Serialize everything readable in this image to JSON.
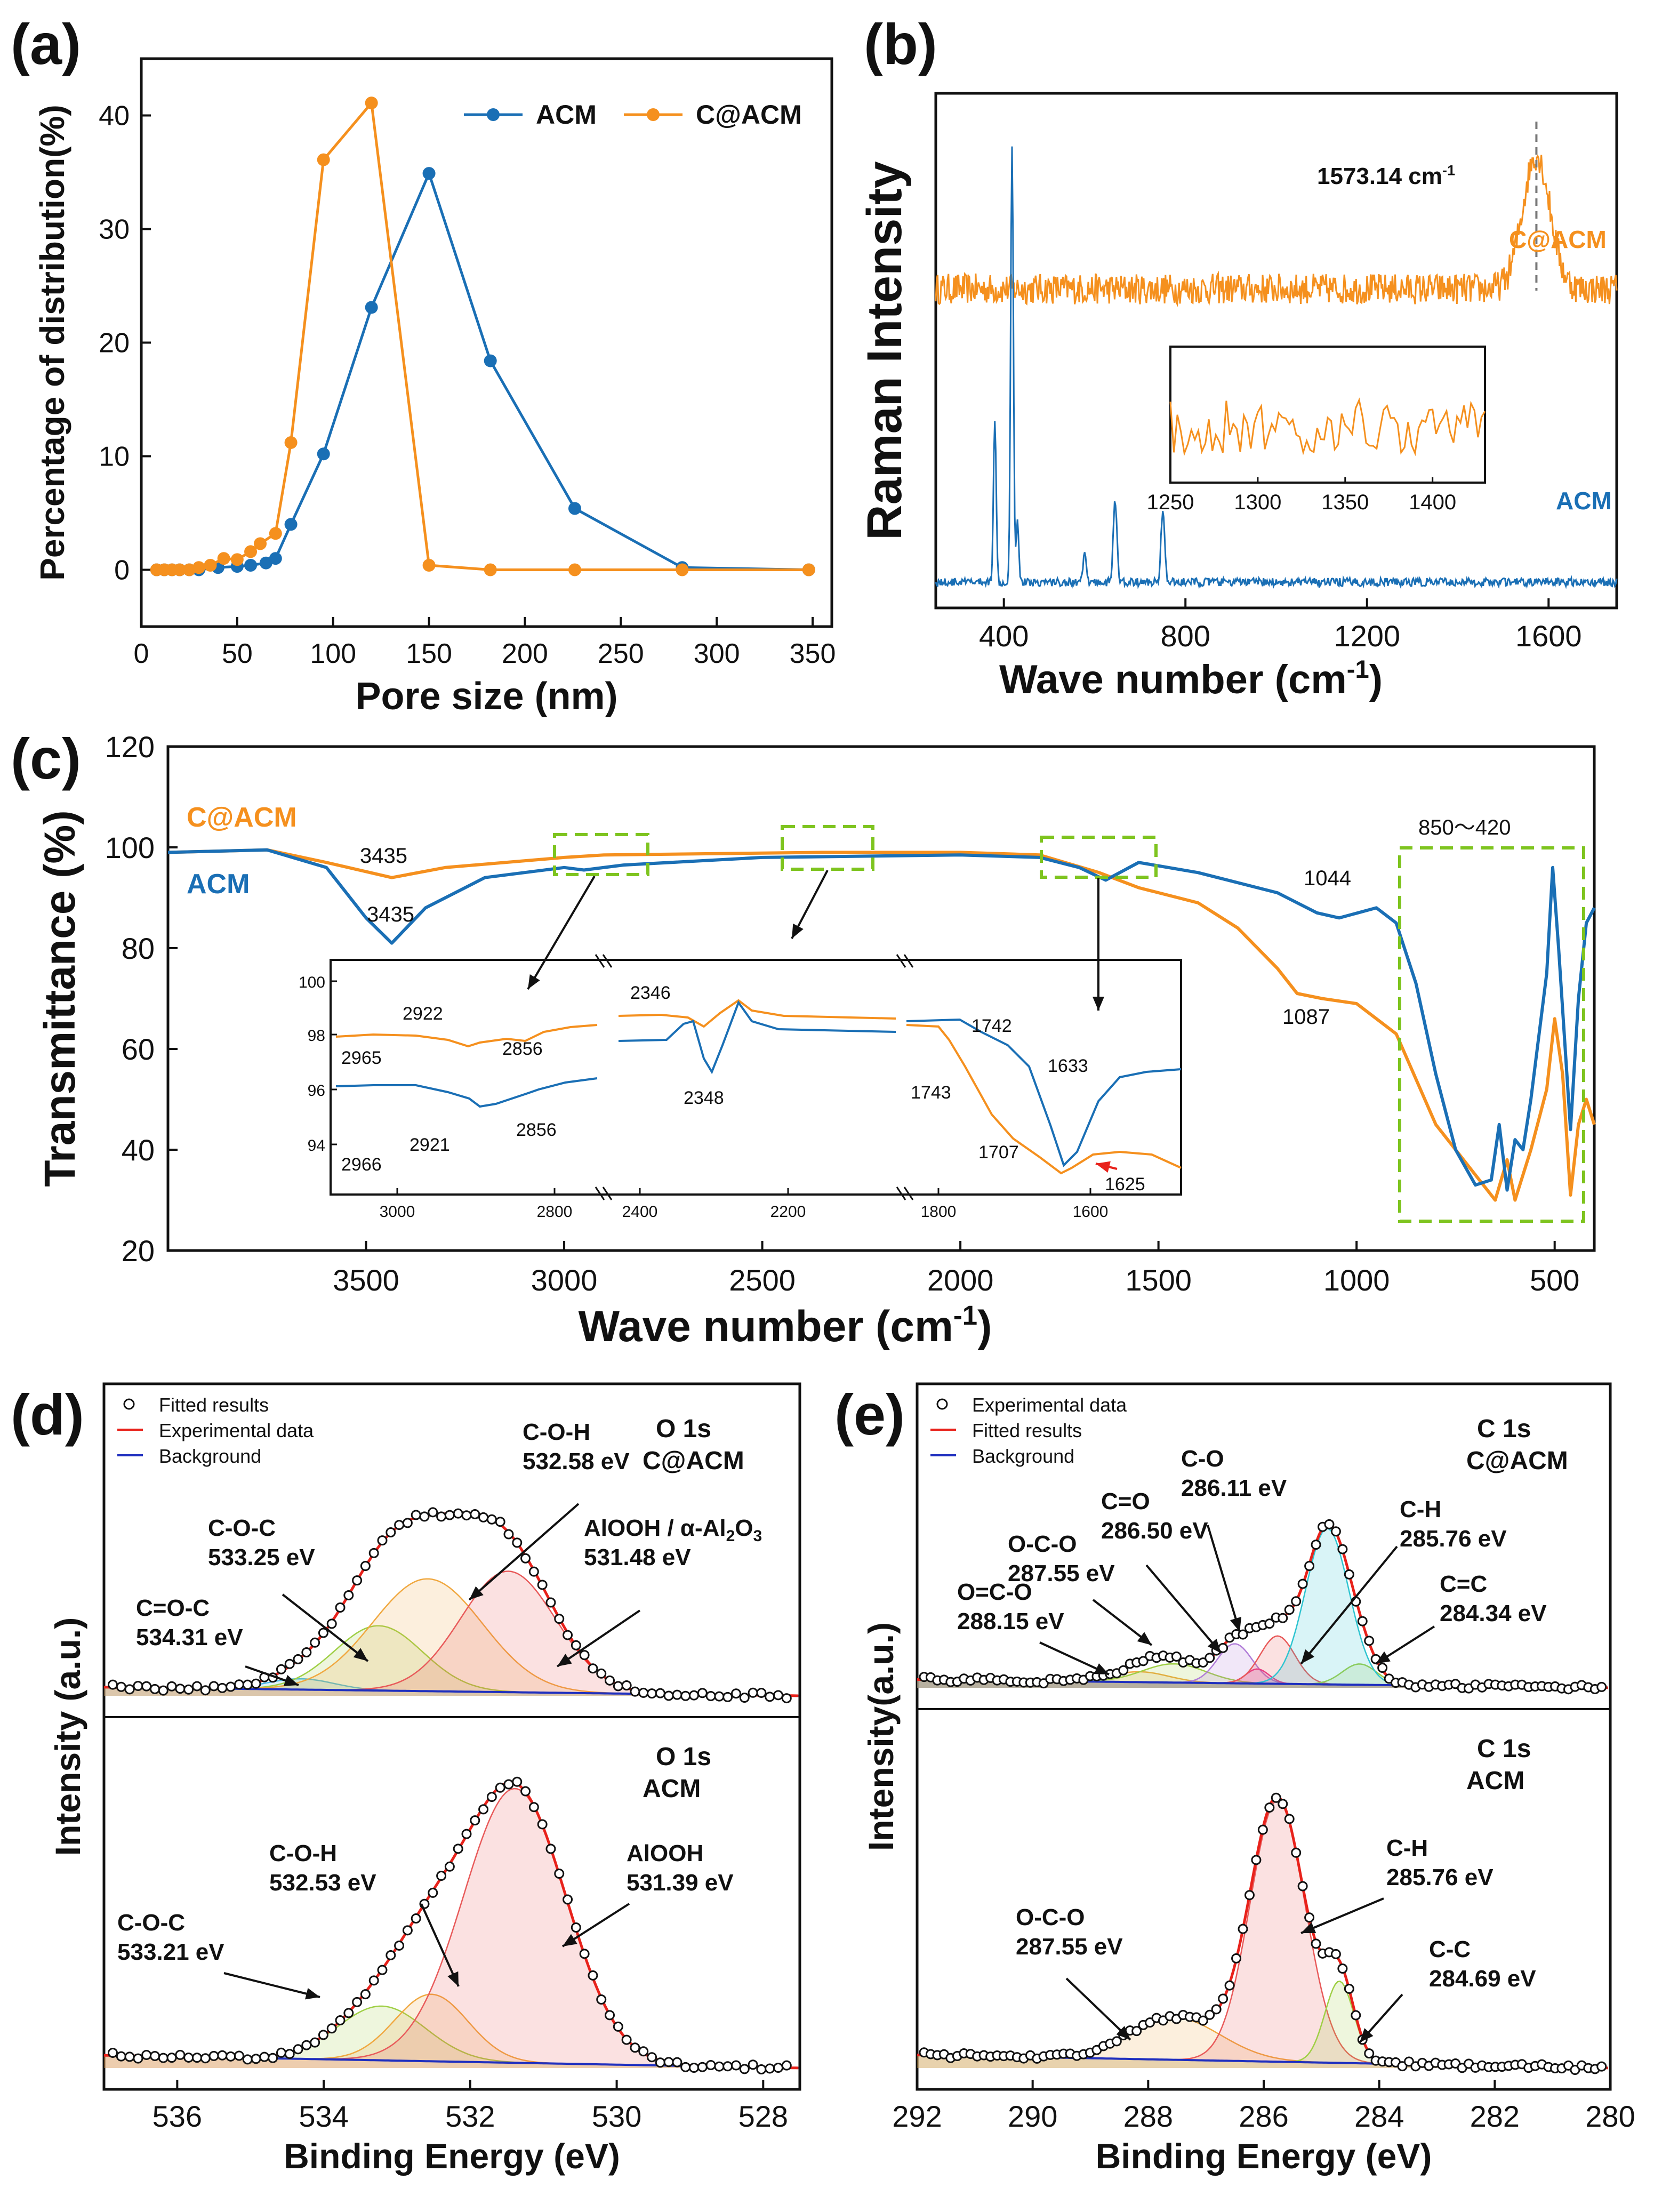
{
  "colors": {
    "acm": "#1a6fb5",
    "cacm": "#f5901e",
    "red": "#e8221b",
    "blue": "#1f2fbf",
    "green": "#7ec41f",
    "gray": "#666666"
  },
  "chart_data": [
    {
      "panel": "(a)",
      "type": "line",
      "xlabel": "Pore size (nm)",
      "ylabel": "Percentage of distribution(%)",
      "xlim": [
        0,
        360
      ],
      "ylim": [
        -5,
        45
      ],
      "xticks": [
        0,
        50,
        100,
        150,
        200,
        250,
        300,
        350
      ],
      "yticks": [
        0,
        10,
        20,
        30,
        40
      ],
      "series": [
        {
          "name": "ACM",
          "color": "#1a6fb5",
          "x": [
            8,
            12,
            16,
            20,
            25,
            30,
            40,
            50,
            57,
            65,
            70,
            78,
            95,
            120,
            150,
            182,
            226,
            282,
            348
          ],
          "y": [
            0,
            0,
            0,
            0,
            0,
            0,
            0.2,
            0.3,
            0.4,
            0.6,
            1.0,
            4.0,
            10.2,
            23.1,
            34.9,
            18.4,
            5.4,
            0.2,
            0
          ]
        },
        {
          "name": "C@ACM",
          "color": "#f5901e",
          "x": [
            8,
            12,
            16,
            20,
            25,
            30,
            36,
            43,
            50,
            57,
            62,
            70,
            78,
            95,
            120,
            150,
            182,
            226,
            282,
            348
          ],
          "y": [
            0,
            0,
            0,
            0,
            0,
            0.2,
            0.4,
            1.0,
            0.9,
            1.6,
            2.3,
            3.2,
            11.2,
            36.1,
            41.1,
            0.4,
            0,
            0,
            0,
            0
          ]
        }
      ]
    },
    {
      "panel": "(b)",
      "type": "line",
      "xlabel": "Wave number (cm",
      "xlabel_sup": "-1",
      "xlabel_close": ")",
      "ylabel": "Raman Intensity",
      "xlim": [
        250,
        1750
      ],
      "xticks": [
        400,
        800,
        1200,
        1600
      ],
      "peak_label": "1573.14 cm",
      "peak_label_sup": "-1",
      "peak_position": 1573.14,
      "series": [
        {
          "name": "C@ACM",
          "color": "#f5901e",
          "baseline": 0.62,
          "noise": 0.03,
          "peaks": [
            [
              1573,
              0.26,
              30
            ]
          ]
        },
        {
          "name": "ACM",
          "color": "#1a6fb5",
          "baseline": 0.05,
          "noise": 0.008,
          "peaks": [
            [
              380,
              0.32,
              3
            ],
            [
              418,
              0.85,
              3
            ],
            [
              430,
              0.12,
              3
            ],
            [
              578,
              0.06,
              3
            ],
            [
              645,
              0.16,
              4
            ],
            [
              750,
              0.14,
              4
            ]
          ]
        }
      ],
      "inset": {
        "xlim": [
          1250,
          1430
        ],
        "xticks": [
          1250,
          1300,
          1350,
          1400
        ]
      }
    },
    {
      "panel": "(c)",
      "type": "line",
      "xlabel": "Wave number (cm",
      "xlabel_sup": "-1",
      "xlabel_close": ")",
      "ylabel": "Transmittance (%)",
      "xlim": [
        4000,
        400
      ],
      "ylim": [
        20,
        120
      ],
      "xticks": [
        3500,
        3000,
        2500,
        2000,
        1500,
        1000,
        500
      ],
      "yticks": [
        20,
        40,
        60,
        80,
        100,
        120
      ],
      "series": [
        {
          "name": "C@ACM",
          "color": "#f5901e",
          "x": [
            4000,
            3750,
            3600,
            3435,
            3300,
            3000,
            2900,
            2350,
            2000,
            1800,
            1650,
            1550,
            1400,
            1300,
            1200,
            1150,
            1087,
            1000,
            900,
            800,
            700,
            650,
            620,
            600,
            560,
            520,
            500,
            480,
            460,
            440,
            420,
            400
          ],
          "y": [
            99,
            99.5,
            97,
            94,
            96,
            98,
            98.5,
            99,
            99,
            98.5,
            95,
            92,
            89,
            84,
            76,
            71,
            70,
            69,
            63,
            45,
            35,
            30,
            38,
            30,
            40,
            52,
            66,
            55,
            31,
            45,
            50,
            45
          ]
        },
        {
          "name": "ACM",
          "color": "#1a6fb5",
          "x": [
            4000,
            3750,
            3600,
            3500,
            3435,
            3350,
            3200,
            3000,
            2950,
            2850,
            2500,
            2000,
            1800,
            1700,
            1633,
            1550,
            1400,
            1200,
            1100,
            1044,
            950,
            900,
            850,
            800,
            750,
            700,
            660,
            640,
            620,
            600,
            580,
            560,
            520,
            505,
            490,
            460,
            440,
            420,
            400
          ],
          "y": [
            99,
            99.5,
            96,
            86,
            81,
            88,
            94,
            96,
            95.5,
            96.5,
            98,
            98.5,
            98,
            96,
            93.5,
            97,
            95,
            91,
            87,
            86,
            88,
            85,
            73,
            55,
            40,
            33,
            34,
            45,
            32,
            42,
            40,
            50,
            75,
            96,
            80,
            44,
            70,
            85,
            88
          ]
        }
      ],
      "peak_labels": [
        "3435",
        "3435",
        "1044",
        "1087",
        "850～420"
      ],
      "legend": [
        "C@ACM",
        "ACM"
      ],
      "inset": {
        "yticks": [
          "100",
          "98",
          "96",
          "94"
        ],
        "xticks": [
          "3000",
          "2800",
          "2400",
          "2200",
          "1800",
          "1600"
        ],
        "labels": [
          "2922",
          "2965",
          "2856",
          "2966",
          "2921",
          "2856",
          "2346",
          "2348",
          "1742",
          "1633",
          "1743",
          "1707",
          "1625"
        ]
      }
    },
    {
      "panel": "(d)",
      "type": "line",
      "xlabel": "Binding Energy (eV)",
      "ylabel": "Intensity (a.u.)",
      "xlim": [
        537,
        527.5
      ],
      "xticks": [
        536,
        534,
        532,
        530,
        528
      ],
      "legend": [
        "Fitted results",
        "Experimental data",
        "Background"
      ],
      "subplots": [
        {
          "title1": "O 1s",
          "title2": "C@ACM",
          "components": [
            {
              "center": 534.31,
              "height": 0.05,
              "width": 0.9,
              "color": "#4db8e8"
            },
            {
              "center": 533.25,
              "height": 0.3,
              "width": 1.2,
              "color": "#9fcf45"
            },
            {
              "center": 532.58,
              "height": 0.52,
              "width": 1.5,
              "color": "#f0a840"
            },
            {
              "center": 531.48,
              "height": 0.56,
              "width": 1.3,
              "color": "#e85a5a"
            }
          ],
          "labels": [
            {
              "l1": "C-O-H",
              "l2": "532.58 eV"
            },
            {
              "l1": "C-O-C",
              "l2": "533.25 eV"
            },
            {
              "l1": "AlOOH / α-Al",
              "l1_sub": "2",
              "l1_end": "O",
              "l1_sub2": "3",
              "l2": "531.48 eV"
            },
            {
              "l1": "C=O-C",
              "l2": "534.31 eV"
            }
          ]
        },
        {
          "title1": "O 1s",
          "title2": "ACM",
          "components": [
            {
              "center": 533.21,
              "height": 0.17,
              "width": 1.2,
              "color": "#9fcf45"
            },
            {
              "center": 532.53,
              "height": 0.21,
              "width": 1.0,
              "color": "#f0a840"
            },
            {
              "center": 531.39,
              "height": 0.86,
              "width": 1.4,
              "color": "#e85a5a"
            }
          ],
          "labels": [
            {
              "l1": "C-O-H",
              "l2": "532.53 eV"
            },
            {
              "l1": "AlOOH",
              "l2": "531.39 eV"
            },
            {
              "l1": "C-O-C",
              "l2": "533.21 eV"
            }
          ]
        }
      ]
    },
    {
      "panel": "(e)",
      "type": "line",
      "xlabel": "Binding Energy (eV)",
      "ylabel": "Intensity(a.u.)",
      "xlim": [
        292,
        280
      ],
      "xticks": [
        292,
        290,
        288,
        286,
        284,
        282,
        280
      ],
      "legend": [
        "Experimental data",
        "Fitted results",
        "Background"
      ],
      "subplots": [
        {
          "title1": "C 1s",
          "title2": "C@ACM",
          "components": [
            {
              "center": 288.15,
              "height": 0.05,
              "width": 1.0,
              "color": "#f0a840"
            },
            {
              "center": 287.55,
              "height": 0.09,
              "width": 1.1,
              "color": "#9fcf45"
            },
            {
              "center": 286.5,
              "height": 0.19,
              "width": 0.6,
              "color": "#b07cd8"
            },
            {
              "center": 286.11,
              "height": 0.07,
              "width": 0.4,
              "color": "#e83a8c"
            },
            {
              "center": 285.76,
              "height": 0.23,
              "width": 0.6,
              "color": "#e85a5a"
            },
            {
              "center": 284.34,
              "height": 0.1,
              "width": 0.6,
              "color": "#9fcf45"
            },
            {
              "center": 284.9,
              "height": 0.75,
              "width": 0.75,
              "color": "#2ec4d0"
            }
          ],
          "labels": [
            {
              "l1": "C-O",
              "l2": "286.11 eV"
            },
            {
              "l1": "C=O",
              "l2": "286.50 eV"
            },
            {
              "l1": "C-H",
              "l2": "285.76 eV"
            },
            {
              "l1": "O-C-O",
              "l2": "287.55 eV"
            },
            {
              "l1": "C=C",
              "l2": "284.34 eV"
            },
            {
              "l1": "O=C-O",
              "l2": "288.15 eV"
            }
          ]
        },
        {
          "title1": "C 1s",
          "title2": "ACM",
          "components": [
            {
              "center": 287.55,
              "height": 0.13,
              "width": 1.6,
              "color": "#f0a840"
            },
            {
              "center": 285.76,
              "height": 0.8,
              "width": 0.95,
              "color": "#e85a5a"
            },
            {
              "center": 284.69,
              "height": 0.25,
              "width": 0.5,
              "color": "#9fcf45"
            }
          ],
          "labels": [
            {
              "l1": "C-H",
              "l2": "285.76 eV"
            },
            {
              "l1": "O-C-O",
              "l2": "287.55 eV"
            },
            {
              "l1": "C-C",
              "l2": "284.69 eV"
            }
          ]
        }
      ]
    }
  ]
}
